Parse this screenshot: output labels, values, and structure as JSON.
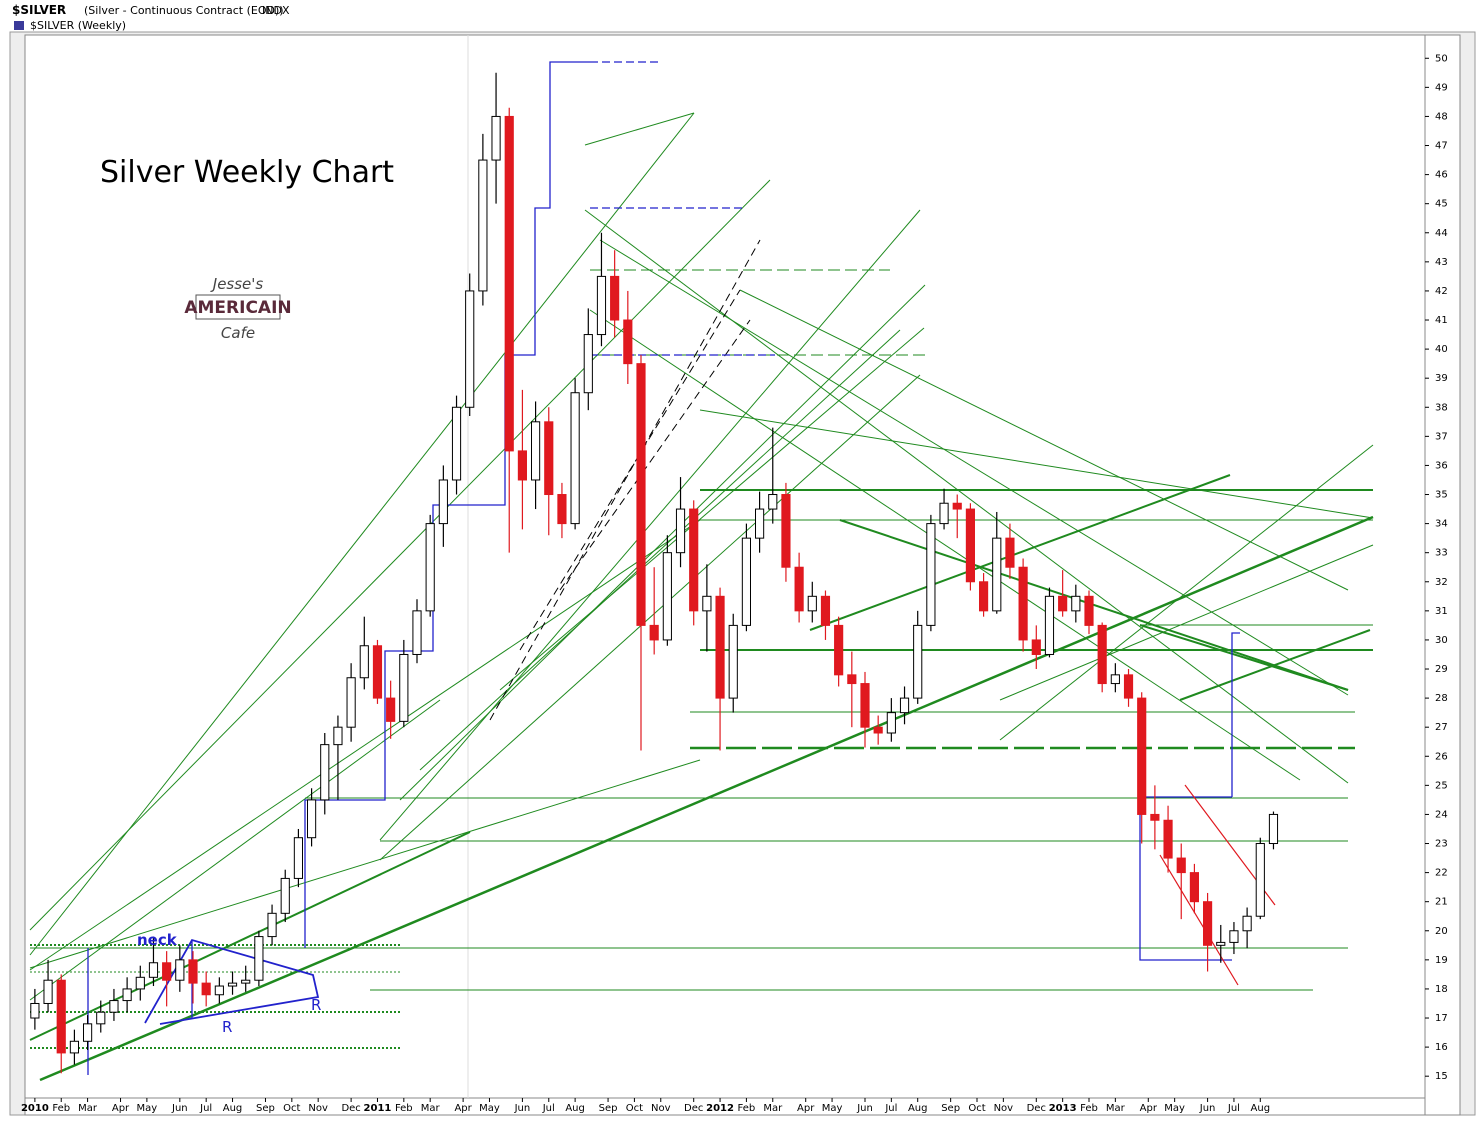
{
  "chart_data": {
    "type": "candlestick",
    "header_title": "$SILVER",
    "header_desc": "(Silver - Continuous Contract (EOD))",
    "header_exchange": "INDX",
    "subtitle": "$SILVER (Weekly)",
    "title": "Silver Weekly Chart",
    "logo": [
      "Jesse's",
      "AMERICAIN",
      "Cafe"
    ],
    "annotations": [
      "neck",
      "R",
      "R"
    ],
    "up_color": "#ffffff",
    "down_color": "#e0191f",
    "wick_color": "#000000",
    "xlim": [
      -1.5,
      211
    ],
    "ylim": [
      14.25,
      50.8
    ],
    "yticks": [
      15,
      16,
      17,
      18,
      19,
      20,
      21,
      22,
      23,
      24,
      25,
      26,
      27,
      28,
      29,
      30,
      31,
      32,
      33,
      34,
      35,
      36,
      37,
      38,
      39,
      40,
      41,
      42,
      43,
      44,
      45,
      46,
      47,
      48,
      49,
      50
    ],
    "xticks": [
      {
        "value": 0,
        "label": "2010"
      },
      {
        "value": 4,
        "label": "Feb"
      },
      {
        "value": 8,
        "label": "Mar"
      },
      {
        "value": 13,
        "label": "Apr"
      },
      {
        "value": 17,
        "label": "May"
      },
      {
        "value": 22,
        "label": "Jun"
      },
      {
        "value": 26,
        "label": "Jul"
      },
      {
        "value": 30,
        "label": "Aug"
      },
      {
        "value": 35,
        "label": "Sep"
      },
      {
        "value": 39,
        "label": "Oct"
      },
      {
        "value": 43,
        "label": "Nov"
      },
      {
        "value": 48,
        "label": "Dec"
      },
      {
        "value": 52,
        "label": "2011"
      },
      {
        "value": 56,
        "label": "Feb"
      },
      {
        "value": 60,
        "label": "Mar"
      },
      {
        "value": 65,
        "label": "Apr"
      },
      {
        "value": 69,
        "label": "May"
      },
      {
        "value": 74,
        "label": "Jun"
      },
      {
        "value": 78,
        "label": "Jul"
      },
      {
        "value": 82,
        "label": "Aug"
      },
      {
        "value": 87,
        "label": "Sep"
      },
      {
        "value": 91,
        "label": "Oct"
      },
      {
        "value": 95,
        "label": "Nov"
      },
      {
        "value": 100,
        "label": "Dec"
      },
      {
        "value": 104,
        "label": "2012"
      },
      {
        "value": 108,
        "label": "Feb"
      },
      {
        "value": 112,
        "label": "Mar"
      },
      {
        "value": 117,
        "label": "Apr"
      },
      {
        "value": 121,
        "label": "May"
      },
      {
        "value": 126,
        "label": "Jun"
      },
      {
        "value": 130,
        "label": "Jul"
      },
      {
        "value": 134,
        "label": "Aug"
      },
      {
        "value": 139,
        "label": "Sep"
      },
      {
        "value": 143,
        "label": "Oct"
      },
      {
        "value": 147,
        "label": "Nov"
      },
      {
        "value": 152,
        "label": "Dec"
      },
      {
        "value": 156,
        "label": "2013"
      },
      {
        "value": 160,
        "label": "Feb"
      },
      {
        "value": 164,
        "label": "Mar"
      },
      {
        "value": 169,
        "label": "Apr"
      },
      {
        "value": 173,
        "label": "May"
      },
      {
        "value": 178,
        "label": "Jun"
      },
      {
        "value": 182,
        "label": "Jul"
      },
      {
        "value": 186,
        "label": "Aug"
      }
    ],
    "x": [
      0,
      2,
      4,
      6,
      8,
      10,
      12,
      14,
      16,
      18,
      20,
      22,
      24,
      26,
      28,
      30,
      32,
      34,
      36,
      38,
      40,
      42,
      44,
      46,
      48,
      50,
      52,
      54,
      56,
      58,
      60,
      62,
      64,
      66,
      68,
      70,
      72,
      74,
      76,
      78,
      80,
      82,
      84,
      86,
      88,
      90,
      92,
      94,
      96,
      98,
      100,
      102,
      104,
      106,
      108,
      110,
      112,
      114,
      116,
      118,
      120,
      122,
      124,
      126,
      128,
      130,
      132,
      134,
      136,
      138,
      140,
      142,
      144,
      146,
      148,
      150,
      152,
      154,
      156,
      158,
      160,
      162,
      164,
      166,
      168,
      170,
      172,
      174,
      176,
      178,
      180,
      182,
      184,
      186,
      188
    ],
    "candles": [
      [
        17.0,
        18.0,
        16.6,
        17.5
      ],
      [
        17.5,
        19.0,
        17.2,
        18.3
      ],
      [
        18.3,
        18.5,
        15.1,
        15.8
      ],
      [
        15.8,
        16.6,
        15.4,
        16.2
      ],
      [
        16.2,
        17.1,
        15.9,
        16.8
      ],
      [
        16.8,
        17.6,
        16.5,
        17.2
      ],
      [
        17.2,
        18.0,
        16.9,
        17.6
      ],
      [
        17.6,
        18.4,
        17.2,
        18.0
      ],
      [
        18.0,
        18.8,
        17.6,
        18.4
      ],
      [
        18.4,
        19.8,
        18.1,
        18.9
      ],
      [
        18.9,
        19.3,
        17.4,
        18.3
      ],
      [
        18.3,
        19.5,
        17.9,
        19.0
      ],
      [
        19.0,
        19.3,
        17.5,
        18.2
      ],
      [
        18.2,
        18.6,
        17.4,
        17.8
      ],
      [
        17.8,
        18.4,
        17.5,
        18.1
      ],
      [
        18.1,
        18.6,
        17.8,
        18.2
      ],
      [
        18.2,
        18.8,
        17.9,
        18.3
      ],
      [
        18.3,
        20.0,
        18.1,
        19.8
      ],
      [
        19.8,
        20.9,
        19.5,
        20.6
      ],
      [
        20.6,
        22.1,
        20.3,
        21.8
      ],
      [
        21.8,
        23.5,
        21.5,
        23.2
      ],
      [
        23.2,
        24.9,
        22.9,
        24.5
      ],
      [
        24.5,
        26.8,
        24.0,
        26.4
      ],
      [
        26.4,
        27.4,
        24.5,
        27.0
      ],
      [
        27.0,
        29.2,
        26.5,
        28.7
      ],
      [
        28.7,
        30.8,
        28.3,
        29.8
      ],
      [
        29.8,
        30.0,
        27.8,
        28.0
      ],
      [
        28.0,
        28.6,
        26.6,
        27.2
      ],
      [
        27.2,
        30.0,
        27.0,
        29.5
      ],
      [
        29.5,
        31.4,
        29.2,
        31.0
      ],
      [
        31.0,
        34.3,
        30.8,
        34.0
      ],
      [
        34.0,
        36.0,
        33.2,
        35.5
      ],
      [
        35.5,
        38.4,
        35.0,
        38.0
      ],
      [
        38.0,
        42.6,
        37.7,
        42.0
      ],
      [
        42.0,
        47.4,
        41.5,
        46.5
      ],
      [
        46.5,
        49.5,
        45.0,
        48.0
      ],
      [
        48.0,
        48.3,
        33.0,
        36.5
      ],
      [
        36.5,
        38.6,
        33.8,
        35.5
      ],
      [
        35.5,
        38.2,
        34.5,
        37.5
      ],
      [
        37.5,
        38.0,
        33.6,
        35.0
      ],
      [
        35.0,
        35.4,
        33.5,
        34.0
      ],
      [
        34.0,
        39.0,
        33.8,
        38.5
      ],
      [
        38.5,
        41.4,
        37.9,
        40.5
      ],
      [
        40.5,
        44.0,
        40.1,
        42.5
      ],
      [
        42.5,
        43.4,
        40.4,
        41.0
      ],
      [
        41.0,
        42.0,
        38.8,
        39.5
      ],
      [
        39.5,
        39.8,
        26.2,
        30.5
      ],
      [
        30.5,
        32.5,
        29.5,
        30.0
      ],
      [
        30.0,
        33.6,
        29.8,
        33.0
      ],
      [
        33.0,
        35.6,
        32.5,
        34.5
      ],
      [
        34.5,
        34.8,
        30.5,
        31.0
      ],
      [
        31.0,
        32.6,
        29.6,
        31.5
      ],
      [
        31.5,
        31.8,
        26.2,
        28.0
      ],
      [
        28.0,
        30.9,
        27.5,
        30.5
      ],
      [
        30.5,
        34.0,
        30.3,
        33.5
      ],
      [
        33.5,
        35.1,
        33.0,
        34.5
      ],
      [
        34.5,
        37.3,
        34.0,
        35.0
      ],
      [
        35.0,
        35.4,
        32.0,
        32.5
      ],
      [
        32.5,
        33.0,
        30.6,
        31.0
      ],
      [
        31.0,
        32.0,
        30.6,
        31.5
      ],
      [
        31.5,
        31.7,
        30.0,
        30.5
      ],
      [
        30.5,
        30.8,
        28.4,
        28.8
      ],
      [
        28.8,
        29.6,
        27.0,
        28.5
      ],
      [
        28.5,
        28.9,
        26.3,
        27.0
      ],
      [
        27.0,
        27.4,
        26.4,
        26.8
      ],
      [
        26.8,
        28.0,
        26.5,
        27.5
      ],
      [
        27.5,
        28.4,
        27.1,
        28.0
      ],
      [
        28.0,
        31.0,
        27.8,
        30.5
      ],
      [
        30.5,
        34.3,
        30.3,
        34.0
      ],
      [
        34.0,
        35.2,
        33.8,
        34.7
      ],
      [
        34.7,
        35.0,
        33.5,
        34.5
      ],
      [
        34.5,
        34.7,
        31.7,
        32.0
      ],
      [
        32.0,
        32.3,
        30.8,
        31.0
      ],
      [
        31.0,
        34.4,
        30.9,
        33.5
      ],
      [
        33.5,
        34.0,
        32.1,
        32.5
      ],
      [
        32.5,
        32.8,
        29.6,
        30.0
      ],
      [
        30.0,
        30.5,
        29.0,
        29.5
      ],
      [
        29.5,
        31.8,
        29.4,
        31.5
      ],
      [
        31.5,
        32.4,
        30.8,
        31.0
      ],
      [
        31.0,
        31.9,
        30.6,
        31.5
      ],
      [
        31.5,
        31.7,
        30.2,
        30.5
      ],
      [
        30.5,
        30.6,
        28.2,
        28.5
      ],
      [
        28.5,
        29.2,
        28.2,
        28.8
      ],
      [
        28.8,
        29.0,
        27.7,
        28.0
      ],
      [
        28.0,
        28.2,
        23.0,
        24.0
      ],
      [
        24.0,
        25.0,
        22.8,
        23.8
      ],
      [
        23.8,
        24.3,
        22.0,
        22.5
      ],
      [
        22.5,
        23.0,
        20.4,
        22.0
      ],
      [
        22.0,
        22.3,
        20.6,
        21.0
      ],
      [
        21.0,
        21.3,
        18.6,
        19.5
      ],
      [
        19.5,
        20.2,
        18.9,
        19.6
      ],
      [
        19.6,
        20.3,
        19.2,
        20.0
      ],
      [
        20.0,
        20.8,
        19.4,
        20.5
      ],
      [
        20.5,
        23.2,
        20.4,
        23.0
      ],
      [
        23.0,
        24.1,
        22.8,
        24.0
      ]
    ]
  }
}
